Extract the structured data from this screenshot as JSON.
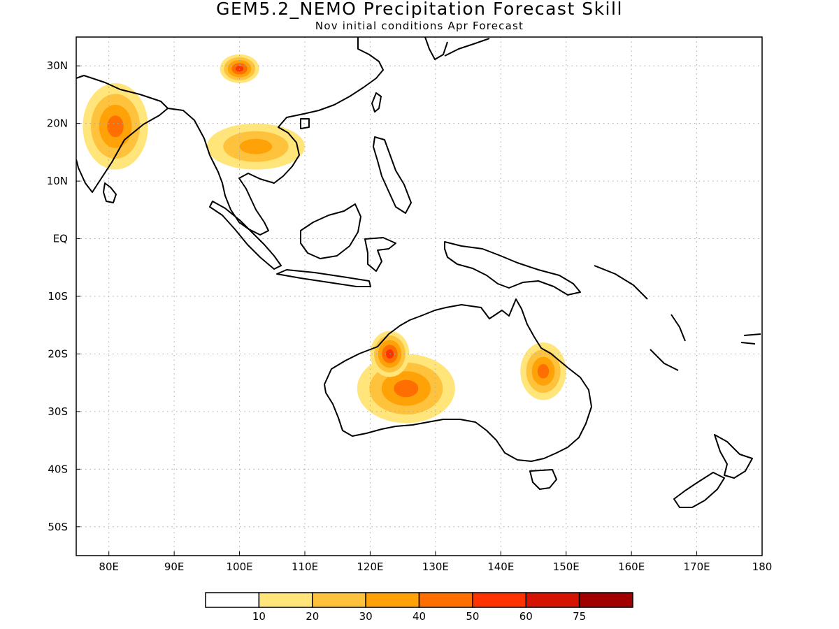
{
  "title": "GEM5.2_NEMO Precipitation Forecast Skill",
  "subtitle": "Nov initial conditions  Apr Forecast",
  "map": {
    "lon_range": [
      75,
      180
    ],
    "lat_range": [
      -55,
      35
    ],
    "grid": true,
    "x_ticks": [
      {
        "lon": 80,
        "label": "80E"
      },
      {
        "lon": 90,
        "label": "90E"
      },
      {
        "lon": 100,
        "label": "100E"
      },
      {
        "lon": 110,
        "label": "110E"
      },
      {
        "lon": 120,
        "label": "120E"
      },
      {
        "lon": 130,
        "label": "130E"
      },
      {
        "lon": 140,
        "label": "140E"
      },
      {
        "lon": 150,
        "label": "150E"
      },
      {
        "lon": 160,
        "label": "160E"
      },
      {
        "lon": 170,
        "label": "170E"
      },
      {
        "lon": 180,
        "label": "180"
      }
    ],
    "y_ticks": [
      {
        "lat": 30,
        "label": "30N"
      },
      {
        "lat": 20,
        "label": "20N"
      },
      {
        "lat": 10,
        "label": "10N"
      },
      {
        "lat": 0,
        "label": "EQ"
      },
      {
        "lat": -10,
        "label": "10S"
      },
      {
        "lat": -20,
        "label": "20S"
      },
      {
        "lat": -30,
        "label": "30S"
      },
      {
        "lat": -40,
        "label": "40S"
      },
      {
        "lat": -50,
        "label": "50S"
      }
    ]
  },
  "colorbar": {
    "colors": [
      "#ffffff",
      "#ffe57a",
      "#ffc23d",
      "#ffa208",
      "#ff6e00",
      "#ff3300",
      "#d41400",
      "#a00000"
    ],
    "labels": [
      "10",
      "20",
      "30",
      "40",
      "50",
      "60",
      "75"
    ]
  },
  "chart_data": {
    "type": "heatmap",
    "title": "GEM5.2_NEMO Precipitation Forecast Skill",
    "subtitle": "Nov initial conditions  Apr Forecast",
    "x_range_deg_lon": [
      75,
      180
    ],
    "y_range_deg_lat": [
      -55,
      35
    ],
    "levels": [
      10,
      20,
      30,
      40,
      50,
      60,
      75
    ],
    "regions": [
      {
        "lon": [
          118,
          133
        ],
        "lat": [
          -20,
          -32
        ],
        "max_level": 40
      },
      {
        "lon": [
          120,
          126
        ],
        "lat": [
          -16,
          -24
        ],
        "max_level": 50
      },
      {
        "lon": [
          143,
          150
        ],
        "lat": [
          -18,
          -28
        ],
        "max_level": 40
      },
      {
        "lon": [
          95,
          110
        ],
        "lat": [
          12,
          20
        ],
        "max_level": 30
      },
      {
        "lon": [
          97,
          103
        ],
        "lat": [
          27,
          32
        ],
        "max_level": 50
      },
      {
        "lon": [
          76,
          86
        ],
        "lat": [
          12,
          27
        ],
        "max_level": 40
      }
    ]
  }
}
